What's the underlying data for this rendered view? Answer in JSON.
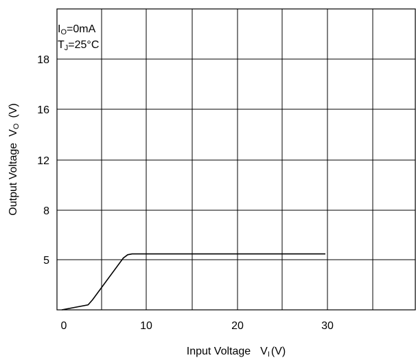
{
  "chart_data": {
    "type": "line",
    "title": "",
    "annotations": [
      {
        "main": "I",
        "sub": "O",
        "rest": "=0mA"
      },
      {
        "main": "T",
        "sub": "J",
        "rest": "=25°C"
      }
    ],
    "xlabel": {
      "text": "Input Voltage",
      "symbol": "V",
      "sub": "I",
      "unit": "(V)"
    },
    "ylabel": {
      "text": "Output Voltage",
      "symbol": "V",
      "sub": "O",
      "unit": "(V)"
    },
    "x_ticks": [
      "0",
      "10",
      "20",
      "30"
    ],
    "y_ticks": [
      "5",
      "8",
      "12",
      "16",
      "18"
    ],
    "grid": true,
    "series": [
      {
        "points": [
          [
            0,
            0
          ],
          [
            3,
            0.5
          ],
          [
            3.5,
            1.0
          ],
          [
            7.0,
            5.1
          ],
          [
            7.5,
            5.3
          ],
          [
            8.0,
            5.35
          ],
          [
            30,
            5.35
          ]
        ]
      }
    ]
  }
}
